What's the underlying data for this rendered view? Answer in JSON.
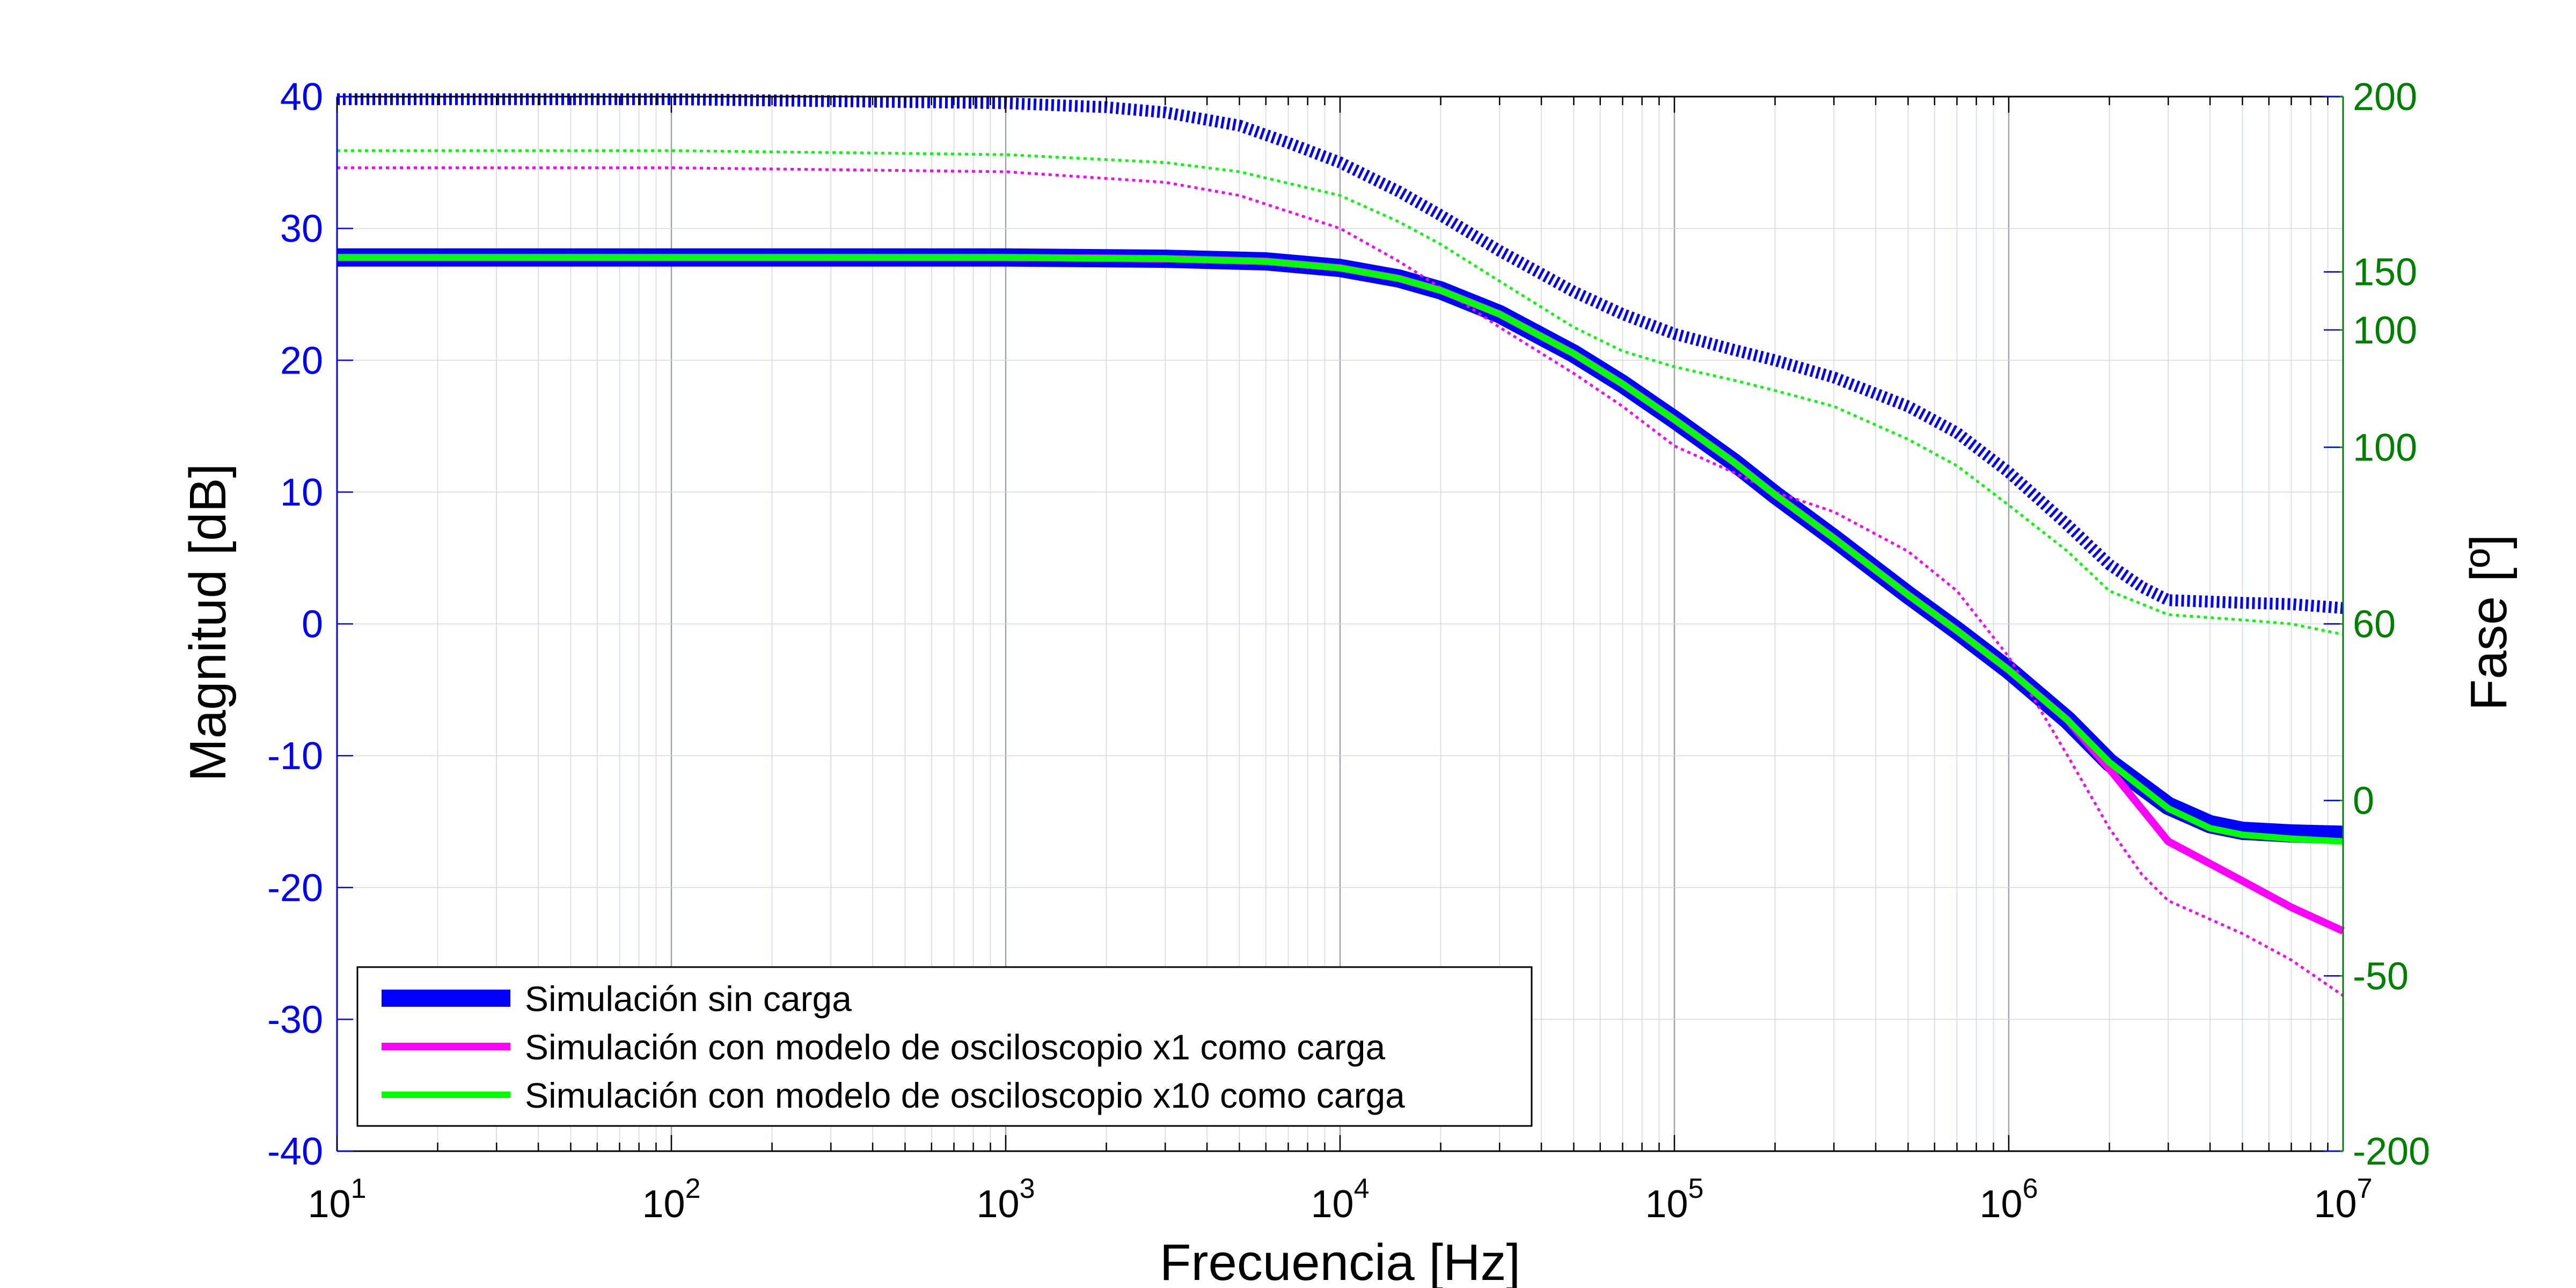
{
  "chart_data": {
    "type": "line",
    "title": "",
    "xlabel": "Frecuencia [Hz]",
    "ylabel": "Magnitud [dB]",
    "y2label": "Fase [º]",
    "x_scale": "log",
    "xlim": [
      10,
      10000000
    ],
    "ylim": [
      -40,
      40
    ],
    "grid": true,
    "legend_position": "bottom-left",
    "x_ticks": [
      {
        "value": 10,
        "base": "10",
        "exp": "1"
      },
      {
        "value": 100,
        "base": "10",
        "exp": "2"
      },
      {
        "value": 1000,
        "base": "10",
        "exp": "3"
      },
      {
        "value": 10000,
        "base": "10",
        "exp": "4"
      },
      {
        "value": 100000,
        "base": "10",
        "exp": "5"
      },
      {
        "value": 1000000,
        "base": "10",
        "exp": "6"
      },
      {
        "value": 10000000,
        "base": "10",
        "exp": "7"
      }
    ],
    "y_ticks": [
      "40",
      "30",
      "20",
      "10",
      "0",
      "-10",
      "-20",
      "-30",
      "-40"
    ],
    "y2_ticks": [
      {
        "label": "200",
        "at_left_value": 40
      },
      {
        "label": "150",
        "at_left_value": 26.7
      },
      {
        "label": "100",
        "at_left_value": 22.3
      },
      {
        "label": "100",
        "at_left_value": 13.4
      },
      {
        "label": "60",
        "at_left_value": 0
      },
      {
        "label": "0",
        "at_left_value": -13.4
      },
      {
        "label": "-50",
        "at_left_value": -26.7
      },
      {
        "label": "-200",
        "at_left_value": -40
      }
    ],
    "colors": {
      "blue": "#0000ff",
      "magenta": "#ff00ff",
      "green": "#00ff00",
      "right_axis": "#008000",
      "grid": "#d3d8e6"
    },
    "series": [
      {
        "name": "Simulación sin carga",
        "axis": "magnitude",
        "color": "#0000ff",
        "style": "solid",
        "points": [
          [
            10,
            27.8
          ],
          [
            100,
            27.8
          ],
          [
            1000,
            27.8
          ],
          [
            3000,
            27.7
          ],
          [
            6000,
            27.5
          ],
          [
            10000,
            27
          ],
          [
            15000,
            26.2
          ],
          [
            20000,
            25.3
          ],
          [
            30000,
            23.5
          ],
          [
            50000,
            20.5
          ],
          [
            70000,
            18.2
          ],
          [
            100000,
            15.5
          ],
          [
            150000,
            12.3
          ],
          [
            200000,
            9.8
          ],
          [
            300000,
            6.5
          ],
          [
            500000,
            2.2
          ],
          [
            700000,
            -0.5
          ],
          [
            1000000,
            -3.5
          ],
          [
            1500000,
            -7.3
          ],
          [
            2000000,
            -10.5
          ],
          [
            3000000,
            -13.8
          ],
          [
            4000000,
            -15.2
          ],
          [
            5000000,
            -15.7
          ],
          [
            7000000,
            -15.9
          ],
          [
            10000000,
            -16
          ]
        ]
      },
      {
        "name": "Simulación con modelo de osciloscopio x1 como carga",
        "axis": "magnitude",
        "color": "#ff00ff",
        "style": "solid",
        "points": [
          [
            10,
            27.8
          ],
          [
            100,
            27.8
          ],
          [
            1000,
            27.8
          ],
          [
            3000,
            27.7
          ],
          [
            6000,
            27.5
          ],
          [
            10000,
            27
          ],
          [
            15000,
            26.2
          ],
          [
            20000,
            25.3
          ],
          [
            30000,
            23.5
          ],
          [
            50000,
            20.5
          ],
          [
            70000,
            18.2
          ],
          [
            100000,
            15.5
          ],
          [
            150000,
            12.3
          ],
          [
            200000,
            9.8
          ],
          [
            300000,
            6.5
          ],
          [
            500000,
            2.2
          ],
          [
            700000,
            -0.5
          ],
          [
            1000000,
            -3.5
          ],
          [
            1500000,
            -7.3
          ],
          [
            2000000,
            -11
          ],
          [
            3000000,
            -16.5
          ],
          [
            5000000,
            -19.5
          ],
          [
            7000000,
            -21.5
          ],
          [
            10000000,
            -23.3
          ]
        ]
      },
      {
        "name": "Simulación con modelo de osciloscopio x10 como carga",
        "axis": "magnitude",
        "color": "#00ff00",
        "style": "solid",
        "points": [
          [
            10,
            27.8
          ],
          [
            100,
            27.8
          ],
          [
            1000,
            27.8
          ],
          [
            3000,
            27.7
          ],
          [
            6000,
            27.5
          ],
          [
            10000,
            27
          ],
          [
            15000,
            26.2
          ],
          [
            20000,
            25.3
          ],
          [
            30000,
            23.5
          ],
          [
            50000,
            20.5
          ],
          [
            70000,
            18.2
          ],
          [
            100000,
            15.5
          ],
          [
            150000,
            12.3
          ],
          [
            200000,
            9.8
          ],
          [
            300000,
            6.5
          ],
          [
            500000,
            2.2
          ],
          [
            700000,
            -0.5
          ],
          [
            1000000,
            -3.5
          ],
          [
            1500000,
            -7.3
          ],
          [
            2000000,
            -10.5
          ],
          [
            3000000,
            -14
          ],
          [
            4000000,
            -15.5
          ],
          [
            5000000,
            -16
          ],
          [
            7000000,
            -16.3
          ],
          [
            10000000,
            -16.5
          ]
        ]
      },
      {
        "name": "",
        "axis": "phase",
        "color": "#0000ff",
        "style": "dashed",
        "points": [
          [
            10,
            39.8
          ],
          [
            100,
            39.8
          ],
          [
            1000,
            39.5
          ],
          [
            2000,
            39.2
          ],
          [
            3000,
            38.8
          ],
          [
            5000,
            37.8
          ],
          [
            7000,
            36.5
          ],
          [
            10000,
            35
          ],
          [
            15000,
            32.8
          ],
          [
            20000,
            31
          ],
          [
            30000,
            28.3
          ],
          [
            50000,
            25.2
          ],
          [
            70000,
            23.5
          ],
          [
            100000,
            22
          ],
          [
            150000,
            20.8
          ],
          [
            200000,
            20
          ],
          [
            300000,
            18.7
          ],
          [
            500000,
            16.5
          ],
          [
            700000,
            14.5
          ],
          [
            1000000,
            11.5
          ],
          [
            1500000,
            7.5
          ],
          [
            2000000,
            4.5
          ],
          [
            2500000,
            2.8
          ],
          [
            3000000,
            1.8
          ],
          [
            5000000,
            1.6
          ],
          [
            7000000,
            1.5
          ],
          [
            10000000,
            1.2
          ]
        ]
      },
      {
        "name": "",
        "axis": "phase",
        "color": "#ff00ff",
        "style": "dotted",
        "points": [
          [
            10,
            34.6
          ],
          [
            100,
            34.6
          ],
          [
            1000,
            34.3
          ],
          [
            3000,
            33.5
          ],
          [
            5000,
            32.5
          ],
          [
            10000,
            30
          ],
          [
            15000,
            27.5
          ],
          [
            20000,
            25.5
          ],
          [
            30000,
            22.5
          ],
          [
            50000,
            19
          ],
          [
            70000,
            16.5
          ],
          [
            100000,
            13.5
          ],
          [
            150000,
            11.5
          ],
          [
            200000,
            10
          ],
          [
            300000,
            8.5
          ],
          [
            500000,
            5.5
          ],
          [
            700000,
            2.5
          ],
          [
            1000000,
            -2.5
          ],
          [
            1500000,
            -10
          ],
          [
            2000000,
            -15.5
          ],
          [
            2500000,
            -19
          ],
          [
            3000000,
            -21
          ],
          [
            5000000,
            -23.5
          ],
          [
            7000000,
            -25.5
          ],
          [
            10000000,
            -28.2
          ]
        ]
      },
      {
        "name": "",
        "axis": "phase",
        "color": "#00ff00",
        "style": "dotted",
        "points": [
          [
            10,
            35.9
          ],
          [
            100,
            35.9
          ],
          [
            1000,
            35.6
          ],
          [
            3000,
            35
          ],
          [
            5000,
            34.3
          ],
          [
            10000,
            32.5
          ],
          [
            15000,
            30.5
          ],
          [
            20000,
            28.8
          ],
          [
            30000,
            26
          ],
          [
            50000,
            22.5
          ],
          [
            70000,
            20.7
          ],
          [
            100000,
            19.5
          ],
          [
            150000,
            18.5
          ],
          [
            200000,
            17.7
          ],
          [
            300000,
            16.5
          ],
          [
            500000,
            14
          ],
          [
            700000,
            12
          ],
          [
            1000000,
            9
          ],
          [
            1500000,
            5.5
          ],
          [
            2000000,
            2.5
          ],
          [
            3000000,
            0.7
          ],
          [
            5000000,
            0.3
          ],
          [
            7000000,
            0
          ],
          [
            10000000,
            -0.8
          ]
        ]
      }
    ]
  }
}
